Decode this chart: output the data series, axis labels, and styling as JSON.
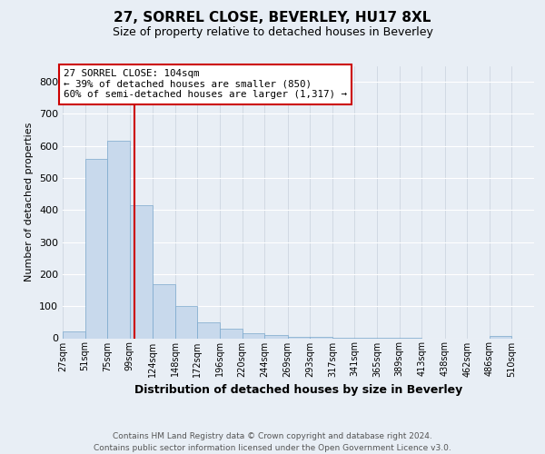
{
  "title": "27, SORREL CLOSE, BEVERLEY, HU17 8XL",
  "subtitle": "Size of property relative to detached houses in Beverley",
  "xlabel": "Distribution of detached houses by size in Beverley",
  "ylabel": "Number of detached properties",
  "footer_line1": "Contains HM Land Registry data © Crown copyright and database right 2024.",
  "footer_line2": "Contains public sector information licensed under the Open Government Licence v3.0.",
  "annotation_line1": "27 SORREL CLOSE: 104sqm",
  "annotation_line2": "← 39% of detached houses are smaller (850)",
  "annotation_line3": "60% of semi-detached houses are larger (1,317) →",
  "bar_color": "#c8d9ec",
  "bar_edge_color": "#7aa8cc",
  "vline_color": "#cc0000",
  "annotation_box_color": "#cc0000",
  "background_color": "#e8eef5",
  "grid_color": "#c8d0dc",
  "bin_labels": [
    "27sqm",
    "51sqm",
    "75sqm",
    "99sqm",
    "124sqm",
    "148sqm",
    "172sqm",
    "196sqm",
    "220sqm",
    "244sqm",
    "269sqm",
    "293sqm",
    "317sqm",
    "341sqm",
    "365sqm",
    "389sqm",
    "413sqm",
    "438sqm",
    "462sqm",
    "486sqm",
    "510sqm"
  ],
  "bin_edges": [
    27,
    51,
    75,
    99,
    124,
    148,
    172,
    196,
    220,
    244,
    269,
    293,
    317,
    341,
    365,
    389,
    413,
    438,
    462,
    486,
    510
  ],
  "bar_heights": [
    20,
    560,
    615,
    415,
    170,
    100,
    50,
    30,
    15,
    10,
    5,
    3,
    2,
    1,
    1,
    1,
    0,
    0,
    0,
    8,
    0
  ],
  "vline_x": 104,
  "ylim": [
    0,
    850
  ],
  "yticks": [
    0,
    100,
    200,
    300,
    400,
    500,
    600,
    700,
    800
  ]
}
